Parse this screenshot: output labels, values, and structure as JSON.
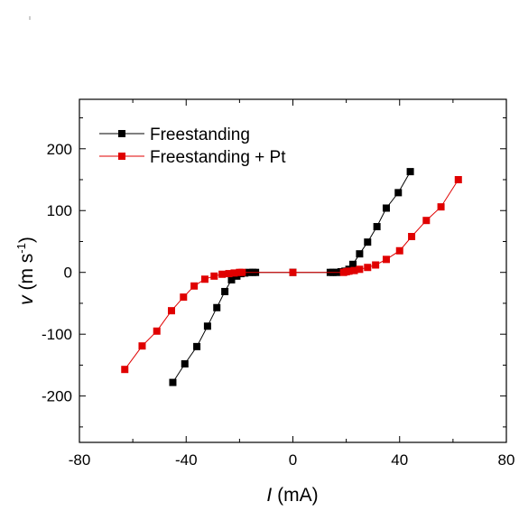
{
  "chart_data": {
    "type": "scatter",
    "xlabel": {
      "var": "I",
      "unit": " (mA)"
    },
    "ylabel": {
      "var": "v",
      "unit_main": " (m s",
      "unit_sup": "-1",
      "unit_end": ")"
    },
    "xlim": [
      -80,
      80
    ],
    "ylim": [
      -275,
      280
    ],
    "xticks": [
      -80,
      -40,
      0,
      40,
      80
    ],
    "xtick_labels": [
      "-80",
      "-40",
      "0",
      "40",
      "80"
    ],
    "yticks": [
      -200,
      -100,
      0,
      100,
      200
    ],
    "ytick_labels": [
      "-200",
      "-100",
      "0",
      "100",
      "200"
    ],
    "grid": false,
    "legend_position": "top-left",
    "series": [
      {
        "name": "Freestanding",
        "color": "#000000",
        "x": [
          -45,
          -40.5,
          -36,
          -32,
          -28.5,
          -25.5,
          -23,
          -21,
          -19.5,
          -18,
          -16.5,
          -15,
          -14,
          0,
          14,
          15,
          16.5,
          18,
          19.5,
          21,
          22.5,
          25,
          28,
          31.5,
          35,
          39.5,
          44
        ],
        "y": [
          -178,
          -148,
          -120,
          -87,
          -57,
          -31,
          -12,
          -6,
          -2,
          -1,
          0,
          0,
          0,
          0,
          0,
          0,
          0,
          1,
          2,
          5,
          13,
          30,
          49,
          74,
          104,
          129,
          163
        ]
      },
      {
        "name": "Freestanding + Pt",
        "color": "#e00000",
        "x": [
          -63,
          -56.5,
          -51,
          -45.5,
          -41,
          -37,
          -33,
          -29.5,
          -26.5,
          -24,
          -22,
          -20,
          -19,
          0,
          19,
          20,
          21,
          23,
          25,
          28,
          31,
          35,
          40,
          44.5,
          50,
          55.5,
          62
        ],
        "y": [
          -157,
          -119,
          -95,
          -62,
          -40,
          -22,
          -11,
          -6,
          -3,
          -2,
          -1,
          0,
          0,
          0,
          0,
          1,
          2,
          3,
          5,
          8,
          12,
          21,
          35,
          58,
          84,
          106,
          150
        ]
      }
    ]
  }
}
